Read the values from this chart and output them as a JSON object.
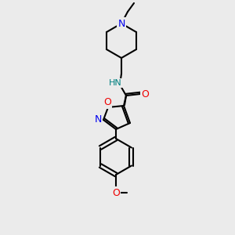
{
  "background_color": "#ebebeb",
  "atom_colors": {
    "N": "#0000ee",
    "O": "#ee0000",
    "NH": "#008080",
    "C": "#000000"
  },
  "figsize": [
    3.0,
    3.0
  ],
  "dpi": 100
}
